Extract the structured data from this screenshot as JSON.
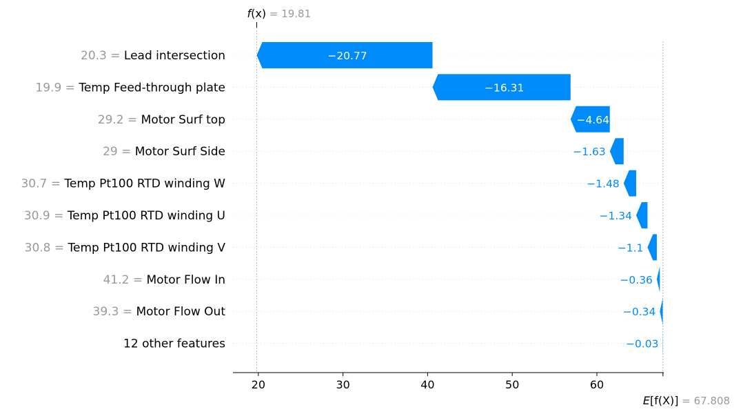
{
  "chart_data": {
    "type": "waterfall",
    "colors": {
      "negative": "#008bfb",
      "positive": "#ff0051",
      "feature_value": "#999999",
      "label": "#000000",
      "bar_text": "#ffffff"
    },
    "fx": {
      "symbol_f": "f",
      "symbol_rest": "(x)",
      "eq": " = ",
      "value": 19.81,
      "value_label": "19.81"
    },
    "base": {
      "symbol_E": "E",
      "symbol_rest": "[f(X)]",
      "eq": " = ",
      "value": 67.808,
      "value_label": "67.808"
    },
    "xlim": [
      17,
      67.9
    ],
    "xticks": [
      20,
      30,
      40,
      50,
      60
    ],
    "xtick_labels": [
      "20",
      "30",
      "40",
      "50",
      "60"
    ],
    "features": [
      {
        "feature_value": "20.3",
        "name": "Lead intersection",
        "value": -20.77,
        "value_label": "−20.77"
      },
      {
        "feature_value": "19.9",
        "name": "Temp Feed-through plate",
        "value": -16.31,
        "value_label": "−16.31"
      },
      {
        "feature_value": "29.2",
        "name": "Motor Surf top",
        "value": -4.64,
        "value_label": "−4.64"
      },
      {
        "feature_value": "29",
        "name": "Motor Surf Side",
        "value": -1.63,
        "value_label": "−1.63"
      },
      {
        "feature_value": "30.7",
        "name": "Temp Pt100 RTD winding W",
        "value": -1.48,
        "value_label": "−1.48"
      },
      {
        "feature_value": "30.9",
        "name": "Temp Pt100 RTD winding U",
        "value": -1.34,
        "value_label": "−1.34"
      },
      {
        "feature_value": "30.8",
        "name": "Temp Pt100 RTD winding V",
        "value": -1.1,
        "value_label": "−1.1"
      },
      {
        "feature_value": "41.2",
        "name": "Motor Flow In",
        "value": -0.36,
        "value_label": "−0.36"
      },
      {
        "feature_value": "39.3",
        "name": "Motor Flow Out",
        "value": -0.34,
        "value_label": "−0.34"
      },
      {
        "feature_value": "",
        "name": "12 other features",
        "value": -0.03,
        "value_label": "−0.03"
      }
    ]
  }
}
